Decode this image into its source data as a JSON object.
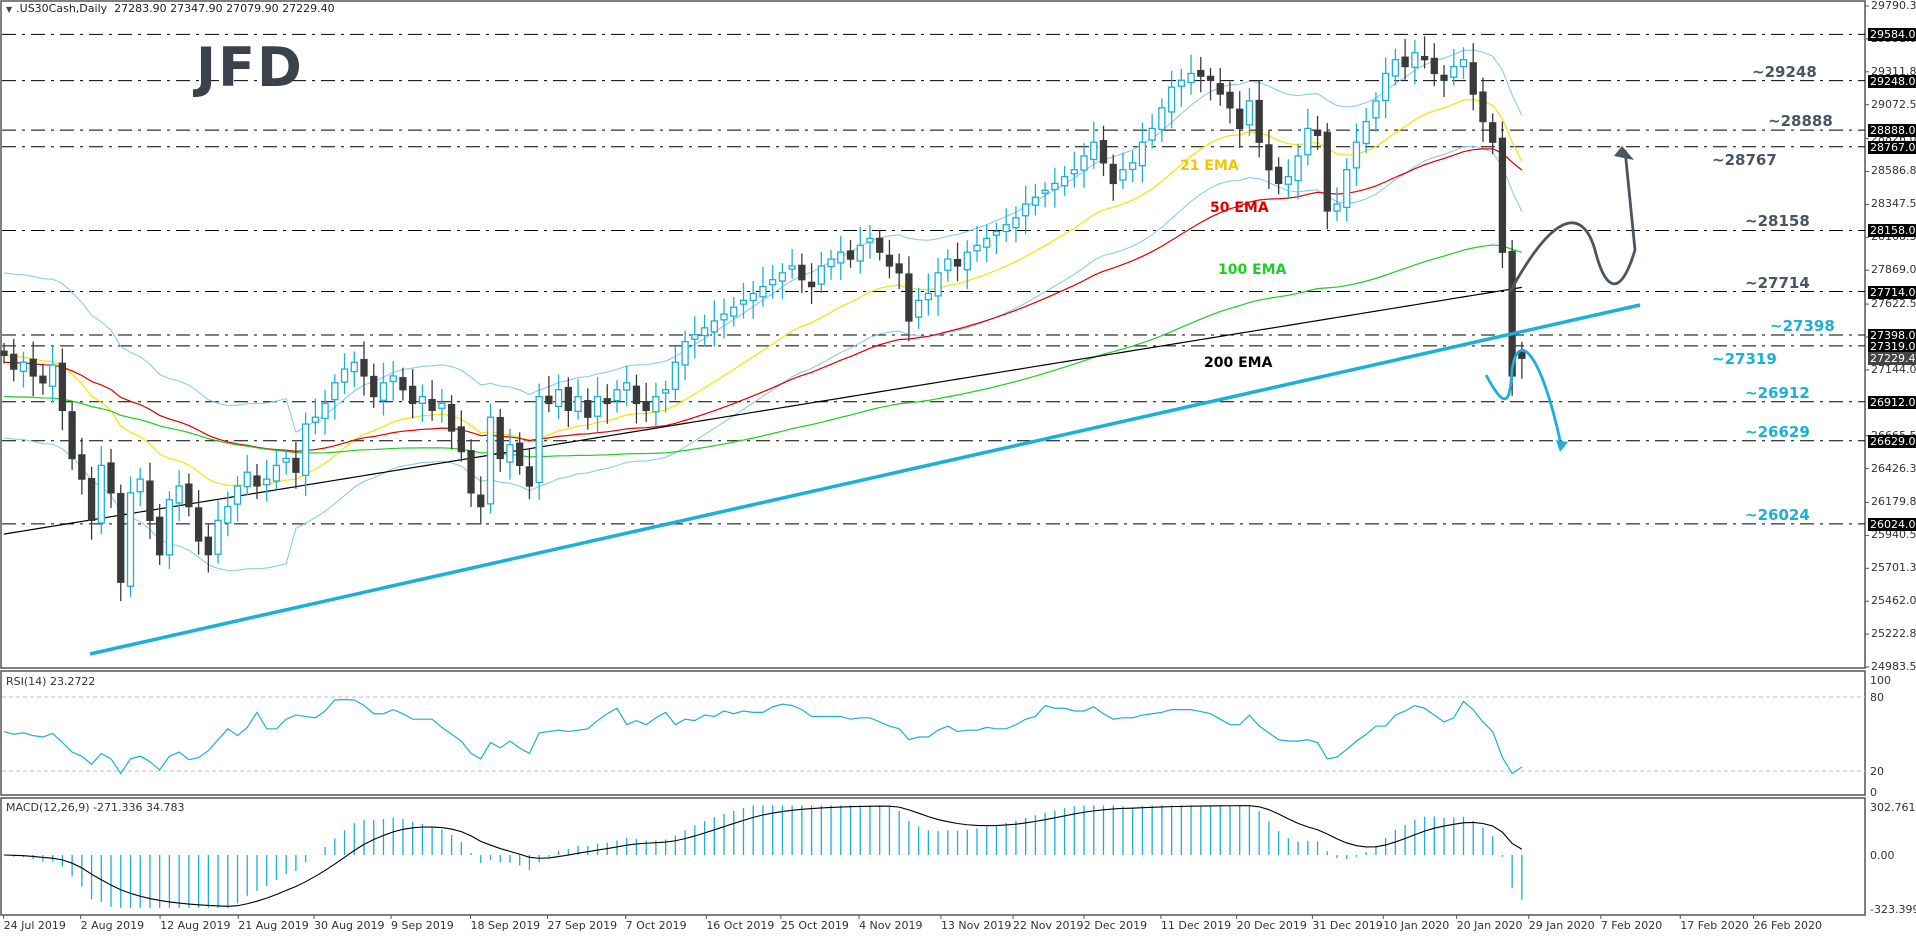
{
  "header": {
    "symbol": ".US30Cash,Daily",
    "ohlc": "27283.90 27347.90 27079.90 27229.40"
  },
  "logo": "JFD",
  "price_axis": {
    "ticks": [
      "29790.30",
      "29551.05",
      "29311.80",
      "29072.55",
      "28826.05",
      "28586.80",
      "28347.55",
      "28108.30",
      "27869.05",
      "27622.55",
      "27383.30",
      "27144.05",
      "26665.55",
      "26426.30",
      "26179.80",
      "25940.55",
      "25701.30",
      "25462.05",
      "25222.80",
      "24983.55"
    ],
    "boxes": [
      "29584.00",
      "29248.00",
      "28888.00",
      "28767.00",
      "28158.00",
      "27714.00",
      "27398.00",
      "27319.00",
      "26912.00",
      "26629.00",
      "26024.00"
    ],
    "current": "27229.40"
  },
  "levels": [
    {
      "label": "~29248",
      "price": 29248,
      "color": "#4a5560"
    },
    {
      "label": "~28888",
      "price": 28888,
      "color": "#4a5560"
    },
    {
      "label": "~28767",
      "price": 28767,
      "color": "#4a5560"
    },
    {
      "label": "~28158",
      "price": 28158,
      "color": "#4a5560"
    },
    {
      "label": "~27714",
      "price": 27714,
      "color": "#4a5560"
    },
    {
      "label": "~27398",
      "price": 27398,
      "color": "#1ab0d8"
    },
    {
      "label": "~27319",
      "price": 27319,
      "color": "#1ab0d8"
    },
    {
      "label": "~26912",
      "price": 26912,
      "color": "#1ab0d8"
    },
    {
      "label": "~26629",
      "price": 26629,
      "color": "#1ab0d8"
    },
    {
      "label": "~26024",
      "price": 26024,
      "color": "#1ab0d8"
    }
  ],
  "ema_labels": [
    {
      "label": "21 EMA",
      "color": "#f5c400"
    },
    {
      "label": "50 EMA",
      "color": "#e00000"
    },
    {
      "label": "100 EMA",
      "color": "#22cc22"
    },
    {
      "label": "200 EMA",
      "color": "#000000"
    }
  ],
  "rsi": {
    "title": "RSI(14) 23.2722",
    "ticks": [
      "100",
      "80",
      "20",
      "0"
    ]
  },
  "macd": {
    "title": "MACD(12,26,9) -271.336 34.783",
    "ticks": [
      "302.761",
      "0.00",
      "-323.399"
    ]
  },
  "dates": [
    "24 Jul 2019",
    "2 Aug 2019",
    "12 Aug 2019",
    "21 Aug 2019",
    "30 Aug 2019",
    "9 Sep 2019",
    "18 Sep 2019",
    "27 Sep 2019",
    "7 Oct 2019",
    "16 Oct 2019",
    "25 Oct 2019",
    "4 Nov 2019",
    "13 Nov 2019",
    "22 Nov 2019",
    "2 Dec 2019",
    "11 Dec 2019",
    "20 Dec 2019",
    "31 Dec 2019",
    "10 Jan 2020",
    "20 Jan 2020",
    "29 Jan 2020",
    "7 Feb 2020",
    "17 Feb 2020",
    "26 Feb 2020"
  ],
  "chart_data": {
    "type": "candlestick",
    "title": ".US30Cash,Daily",
    "last_ohlc": {
      "open": 27283.9,
      "high": 27347.9,
      "low": 27079.9,
      "close": 27229.4
    },
    "ylim": [
      24983.55,
      29790.3
    ],
    "closes": [
      27250,
      27150,
      27200,
      27100,
      27050,
      27180,
      26850,
      26500,
      26350,
      26050,
      26450,
      26250,
      25600,
      26250,
      26350,
      26050,
      25800,
      26200,
      26300,
      26150,
      25900,
      25800,
      26050,
      26150,
      26300,
      26400,
      26300,
      26350,
      26450,
      26500,
      26400,
      26750,
      26800,
      26900,
      27050,
      27150,
      27200,
      27100,
      26950,
      27050,
      27100,
      27000,
      26900,
      26950,
      26850,
      26900,
      26700,
      26550,
      26250,
      26150,
      26800,
      26500,
      26600,
      26450,
      26300,
      26950,
      26900,
      27000,
      26850,
      26950,
      26800,
      26950,
      26900,
      27000,
      27050,
      26900,
      26850,
      26950,
      27000,
      27200,
      27350,
      27400,
      27450,
      27500,
      27550,
      27600,
      27650,
      27700,
      27750,
      27800,
      27850,
      27900,
      27800,
      27750,
      27900,
      27950,
      28000,
      27950,
      28050,
      28100,
      28000,
      27900,
      27850,
      27500,
      27650,
      27700,
      27850,
      27950,
      27900,
      28000,
      28050,
      28100,
      28150,
      28200,
      28250,
      28350,
      28400,
      28450,
      28500,
      28550,
      28600,
      28700,
      28800,
      28650,
      28500,
      28600,
      28650,
      28800,
      28900,
      29050,
      29200,
      29250,
      29300,
      29280,
      29250,
      29150,
      29050,
      28900,
      29100,
      28800,
      28600,
      28500,
      28550,
      28700,
      28900,
      28850,
      28300,
      28350,
      28600,
      28800,
      28950,
      29100,
      29300,
      29400,
      29350,
      29450,
      29400,
      29300,
      29250,
      29350,
      29400,
      29150,
      28950,
      28800,
      28000,
      27100,
      27229
    ],
    "overlays": [
      "21 EMA",
      "50 EMA",
      "100 EMA",
      "200 EMA",
      "Bollinger Bands",
      "Uptrend line",
      "Scenario arrows"
    ],
    "horizontal_levels": [
      29584,
      29248,
      28888,
      28767,
      28158,
      27714,
      27398,
      27319,
      26912,
      26629,
      26024
    ],
    "rsi_last": 23.2722,
    "macd_last": {
      "main": -271.336,
      "signal": 34.783
    },
    "x_range": [
      "24 Jul 2019",
      "26 Feb 2020"
    ]
  }
}
